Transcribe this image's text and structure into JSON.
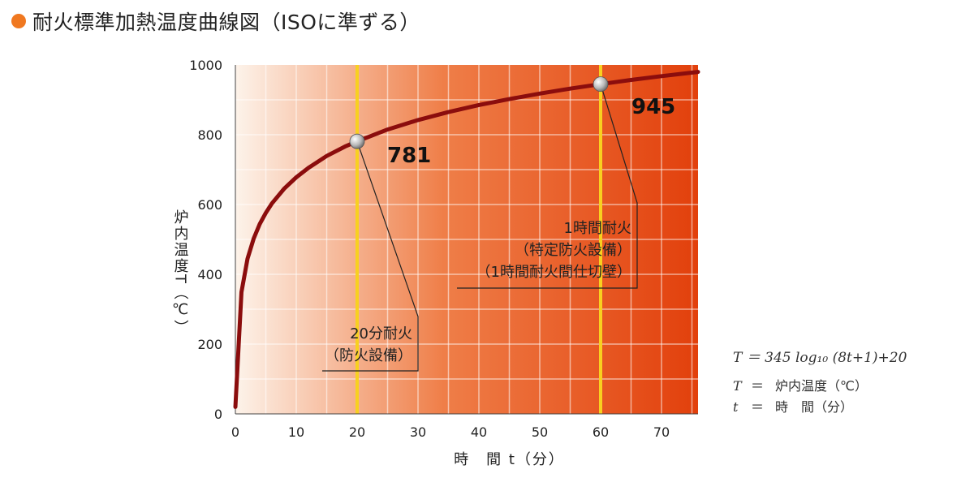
{
  "title": "耐火標準加熱温度曲線図（ISOに準ずる）",
  "colors": {
    "bullet": "#f07820",
    "curve": "#8b0d0d",
    "plot_left": "#fdf3ea",
    "plot_right": "#e2400c",
    "callout_line": "#222222",
    "marker_line": "#f8d020"
  },
  "chart_data": {
    "type": "line",
    "title": "耐火標準加熱温度曲線図（ISOに準ずる）",
    "xlabel": "時　間 t（分）",
    "ylabel": "炉内温度T（℃）",
    "xlim": [
      0,
      76
    ],
    "ylim": [
      0,
      1000
    ],
    "xticks": [
      "0",
      "10",
      "20",
      "30",
      "40",
      "50",
      "60",
      "70"
    ],
    "yticks": [
      "0",
      "200",
      "400",
      "600",
      "800",
      "1000"
    ],
    "grid": true,
    "series": [
      {
        "name": "",
        "x": [
          0,
          1,
          2,
          3,
          4,
          5,
          6,
          8,
          10,
          12,
          15,
          18,
          20,
          25,
          30,
          35,
          40,
          45,
          50,
          55,
          60,
          65,
          70,
          76
        ],
        "y": [
          20,
          349,
          445,
          502,
          544,
          576,
          603,
          645,
          678,
          705,
          739,
          766,
          781,
          815,
          842,
          865,
          885,
          902,
          918,
          932,
          945,
          957,
          968,
          980
        ]
      }
    ],
    "highlights": [
      {
        "x": 20,
        "y": 781,
        "value_label": "781",
        "annotation": [
          "20分耐火",
          "（防火設備）"
        ]
      },
      {
        "x": 60,
        "y": 945,
        "value_label": "945",
        "annotation": [
          "1時間耐火",
          "（特定防火設備）",
          "（1時間耐火間仕切壁）"
        ]
      }
    ]
  },
  "formula": "T ＝ 345 log₁₀ (8t+1)+20",
  "legend": [
    {
      "symbol": "T",
      "eq": "＝",
      "desc": "炉内温度（℃）"
    },
    {
      "symbol": "t",
      "eq": "＝",
      "desc": "時　間（分）"
    }
  ]
}
